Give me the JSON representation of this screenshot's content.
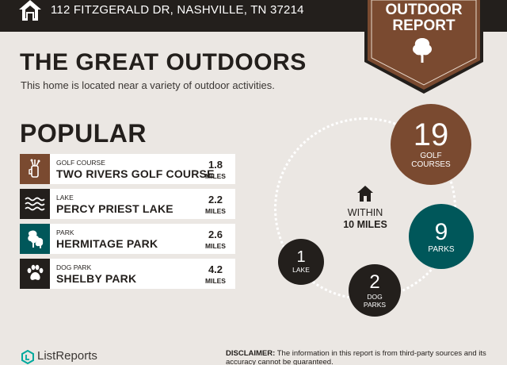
{
  "header": {
    "address": "112 FITZGERALD DR, NASHVILLE, TN 37214",
    "badge_line1": "OUTDOOR",
    "badge_line2": "REPORT"
  },
  "intro": {
    "title": "THE GREAT OUTDOORS",
    "subtitle": "This home is located near a variety of outdoor activities."
  },
  "popular": {
    "heading": "POPULAR",
    "items": [
      {
        "category": "GOLF COURSE",
        "name": "TWO RIVERS GOLF COURSE",
        "distance": "1.8",
        "unit": "MILES",
        "icon": "golf-bag-icon",
        "color": "#7a4a30"
      },
      {
        "category": "LAKE",
        "name": "PERCY PRIEST LAKE",
        "distance": "2.2",
        "unit": "MILES",
        "icon": "water-waves-icon",
        "color": "#231f1c"
      },
      {
        "category": "PARK",
        "name": "HERMITAGE PARK",
        "distance": "2.6",
        "unit": "MILES",
        "icon": "park-tree-icon",
        "color": "#00575a"
      },
      {
        "category": "DOG PARK",
        "name": "SHELBY PARK",
        "distance": "4.2",
        "unit": "MILES",
        "icon": "paw-print-icon",
        "color": "#231f1c"
      }
    ]
  },
  "summary": {
    "within_label": "WITHIN",
    "within_distance": "10 MILES",
    "golf": {
      "count": "19",
      "label1": "GOLF",
      "label2": "COURSES",
      "color": "#7a4a30"
    },
    "parks": {
      "count": "9",
      "label": "PARKS",
      "color": "#00575a"
    },
    "lake": {
      "count": "1",
      "label": "LAKE",
      "color": "#231f1c"
    },
    "dog_parks": {
      "count": "2",
      "label1": "DOG",
      "label2": "PARKS",
      "color": "#231f1c"
    }
  },
  "footer": {
    "brand": "ListReports",
    "disclaimer_label": "DISCLAIMER:",
    "disclaimer_text": "The information in this report is from third-party sources and its accuracy cannot be guaranteed."
  },
  "colors": {
    "background": "#ebe7e3",
    "dark": "#231f1c",
    "brown": "#7a4a30",
    "teal": "#00575a"
  }
}
